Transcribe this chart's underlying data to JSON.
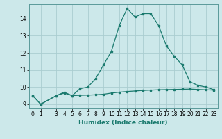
{
  "xlabel": "Humidex (Indice chaleur)",
  "x_upper": [
    0,
    1,
    3,
    4,
    5,
    6,
    7,
    8,
    9,
    10,
    11,
    12,
    13,
    14,
    15,
    16,
    17,
    18,
    19,
    20,
    21,
    22,
    23
  ],
  "y_upper": [
    9.5,
    9.0,
    9.5,
    9.7,
    9.5,
    9.9,
    10.0,
    10.5,
    11.3,
    12.1,
    13.6,
    14.6,
    14.1,
    14.3,
    14.3,
    13.6,
    12.4,
    11.8,
    11.3,
    10.3,
    10.1,
    10.0,
    9.85
  ],
  "x_lower": [
    0,
    1,
    3,
    4,
    5,
    6,
    7,
    8,
    9,
    10,
    11,
    12,
    13,
    14,
    15,
    16,
    17,
    18,
    19,
    20,
    21,
    22,
    23
  ],
  "y_lower": [
    9.5,
    9.0,
    9.5,
    9.65,
    9.5,
    9.52,
    9.53,
    9.55,
    9.58,
    9.65,
    9.7,
    9.74,
    9.77,
    9.8,
    9.82,
    9.84,
    9.85,
    9.86,
    9.87,
    9.88,
    9.86,
    9.84,
    9.82
  ],
  "line_color": "#1a7a6e",
  "bg_color": "#cce8ea",
  "grid_color": "#aacdd0",
  "ylim": [
    8.75,
    14.85
  ],
  "yticks": [
    9,
    10,
    11,
    12,
    13,
    14
  ],
  "xticks": [
    0,
    1,
    3,
    4,
    5,
    6,
    7,
    8,
    9,
    10,
    11,
    12,
    13,
    14,
    15,
    16,
    17,
    18,
    19,
    20,
    21,
    22,
    23
  ],
  "xlim": [
    -0.5,
    23.5
  ],
  "tick_fontsize": 5.5,
  "xlabel_fontsize": 6.5
}
